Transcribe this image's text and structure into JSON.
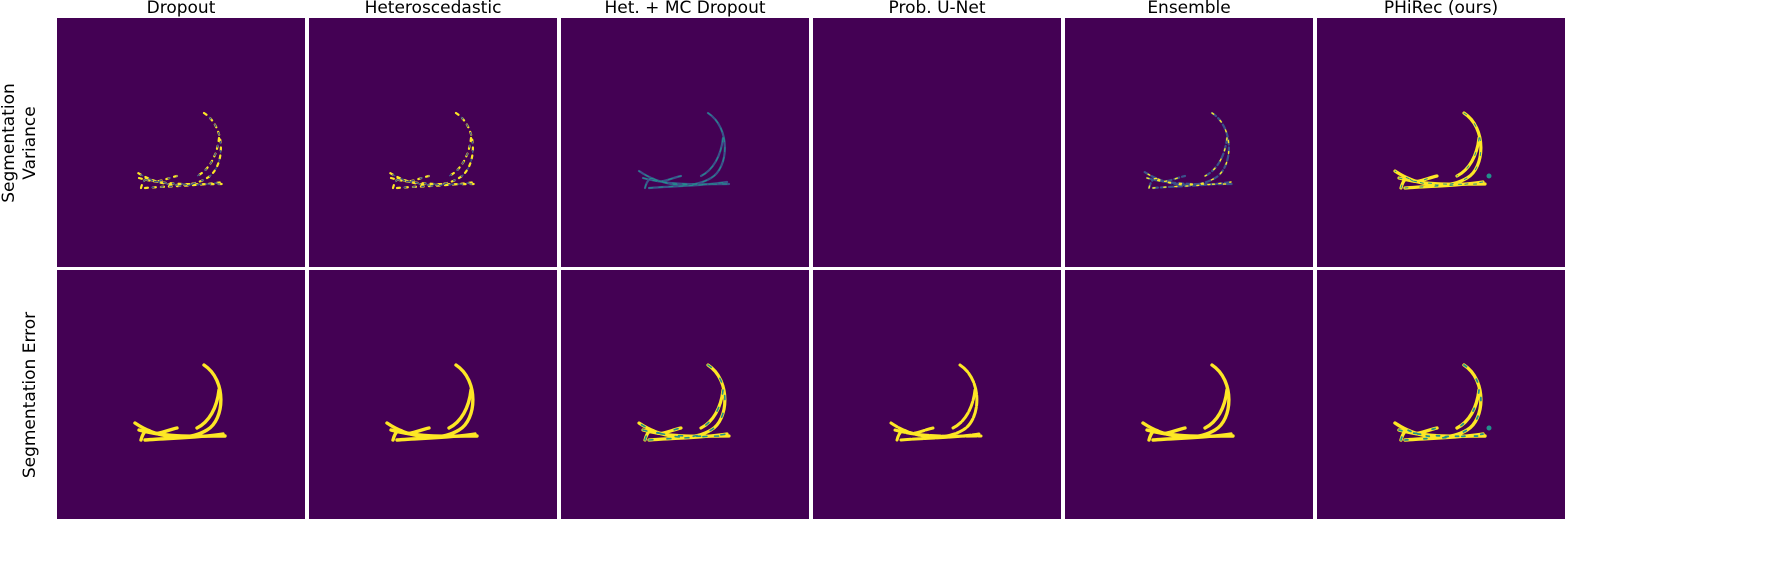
{
  "columns": [
    {
      "title": "Dropout"
    },
    {
      "title": "Heteroscedastic"
    },
    {
      "title": "Het. + MC Dropout"
    },
    {
      "title": "Prob. U-Net"
    },
    {
      "title": "Ensemble"
    },
    {
      "title": "PHiRec (ours)"
    }
  ],
  "rows": [
    {
      "label_lines": [
        "Segmentation",
        "Variance"
      ]
    },
    {
      "label_lines": [
        "Segmentation Error"
      ]
    }
  ],
  "colormap": {
    "background": "#440154",
    "low": "#3b528b",
    "mid": "#21918c",
    "high": "#fde725"
  },
  "panel_style": [
    [
      "dashed-yellow",
      "dashed-yellow",
      "thin-blue",
      "empty",
      "dashed-blue",
      "bold-yellow"
    ],
    [
      "solid-yellow",
      "solid-yellow",
      "yellow-teal",
      "yellow-dashed",
      "solid-yellow",
      "yellow-teal-blob"
    ]
  ]
}
